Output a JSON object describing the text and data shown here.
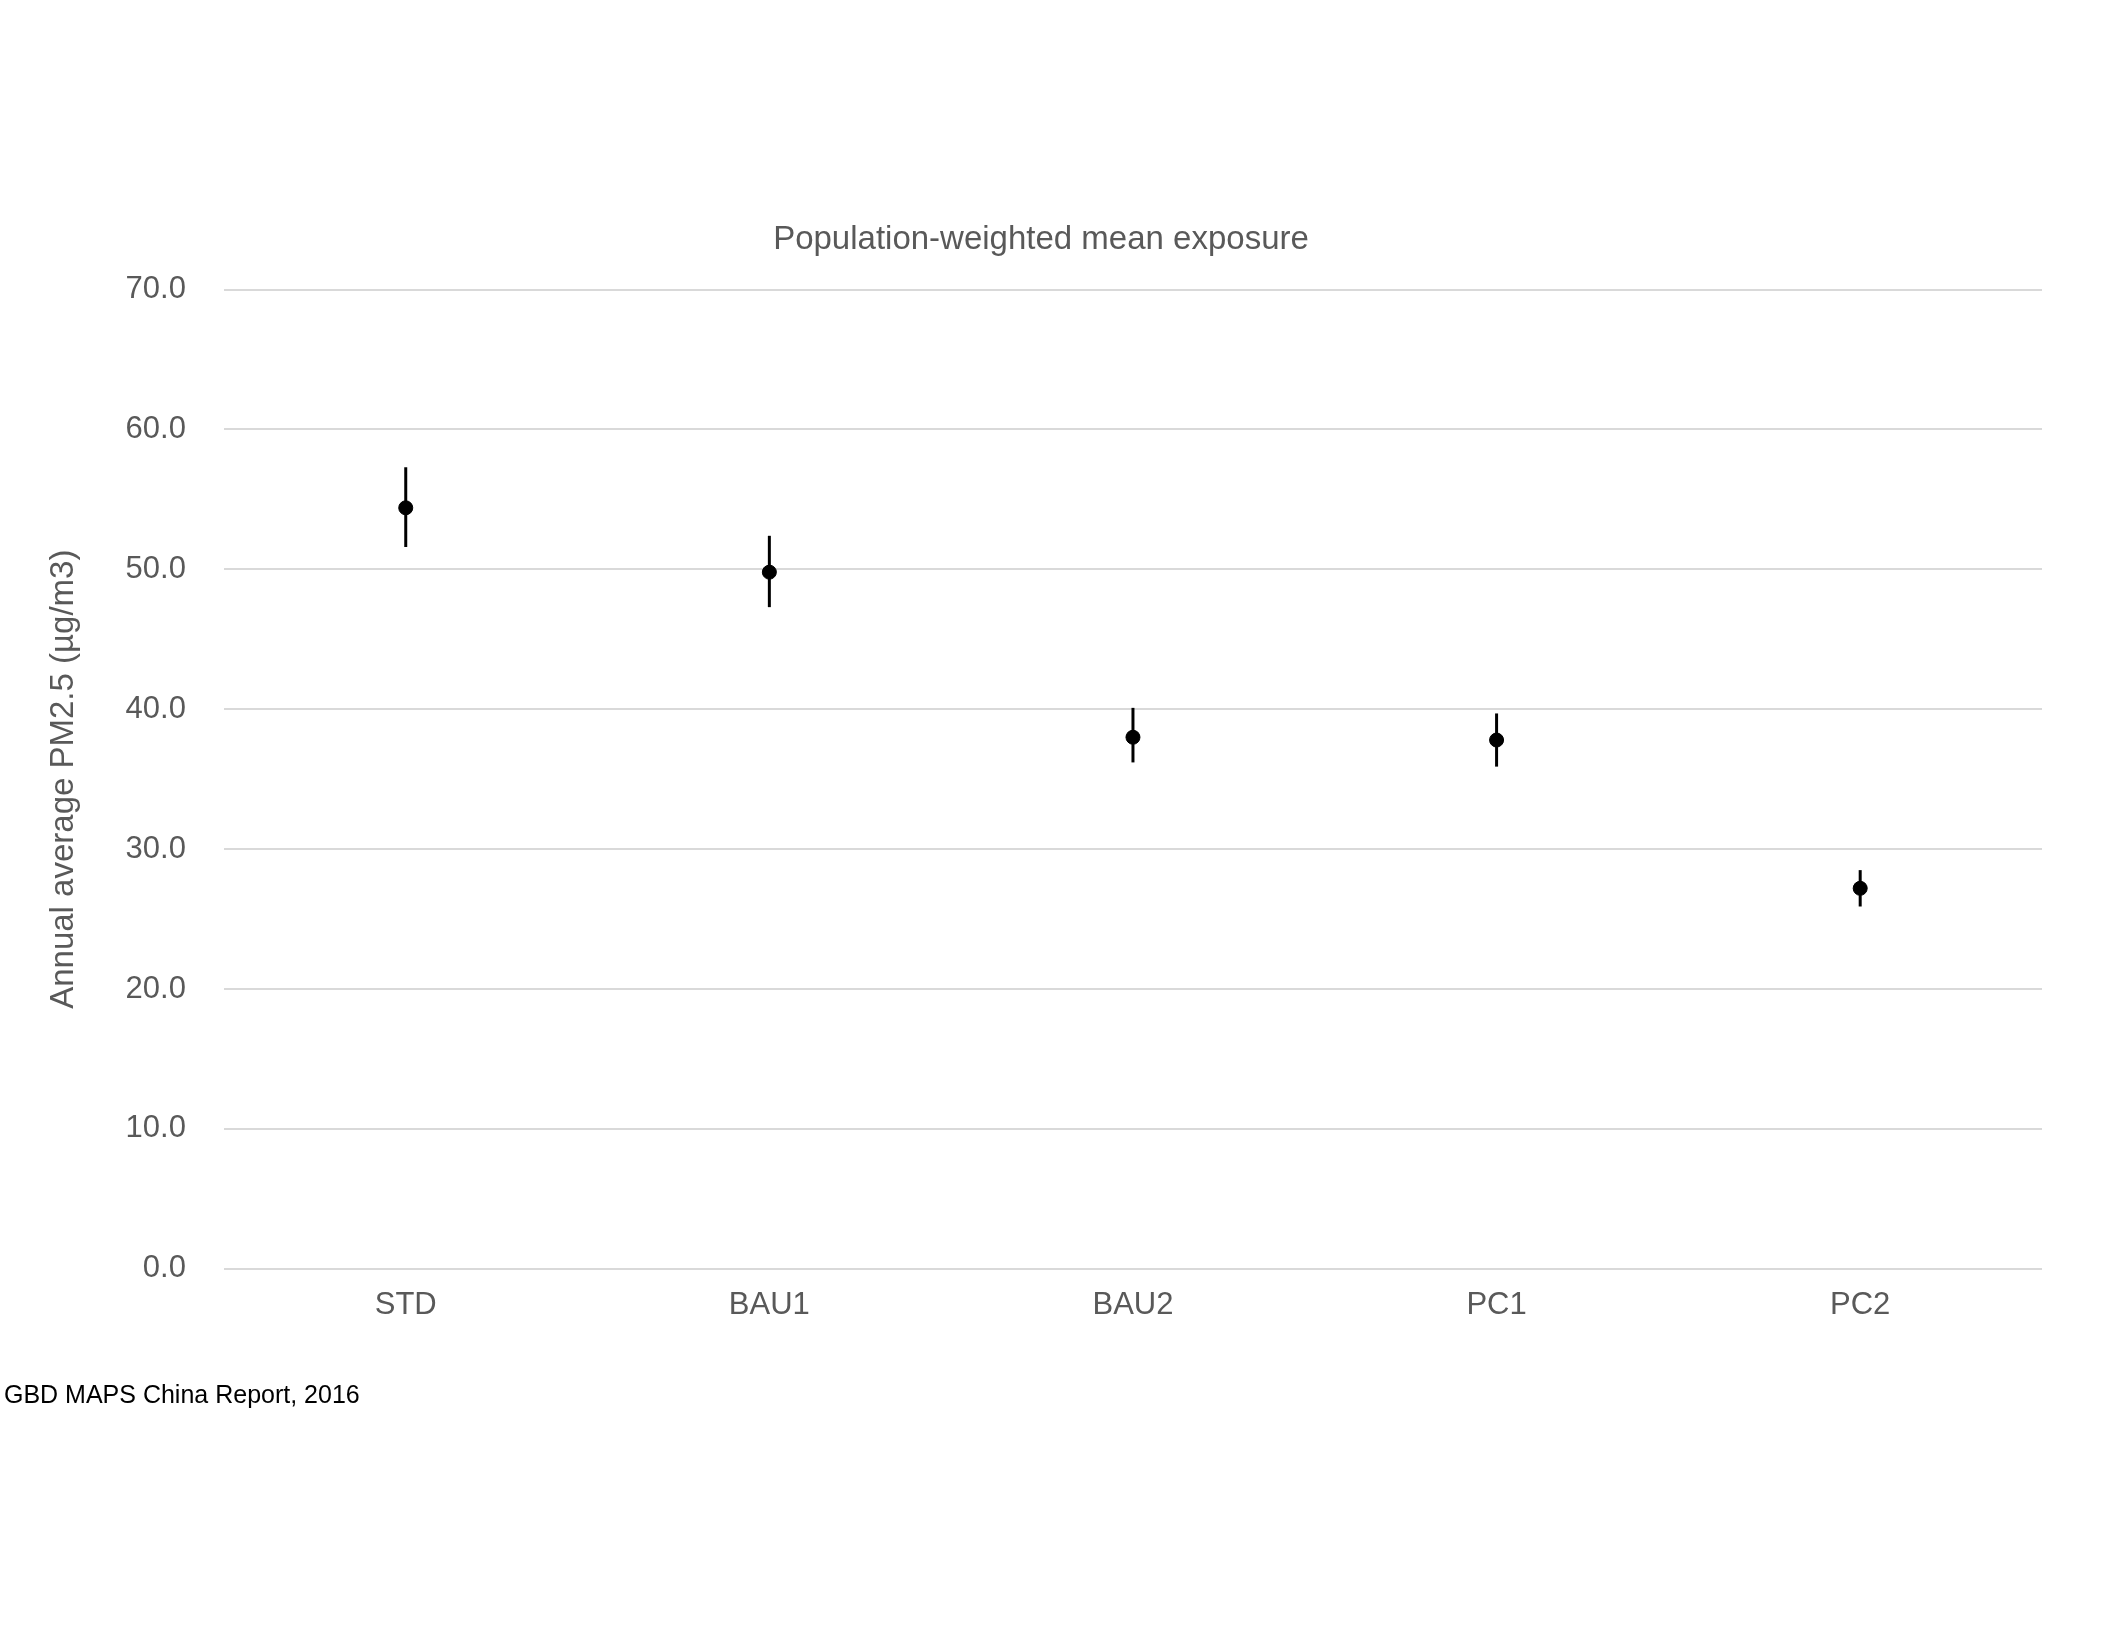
{
  "chart_data": {
    "type": "scatter",
    "title": "Population-weighted mean exposure",
    "ylabel": "Annual average PM2.5 (µg/m3)",
    "categories": [
      "STD",
      "BAU1",
      "BAU2",
      "PC1",
      "PC2"
    ],
    "values": [
      54.4,
      49.8,
      38.0,
      37.8,
      27.2
    ],
    "errors": [
      [
        51.6,
        57.3
      ],
      [
        47.3,
        52.4
      ],
      [
        36.2,
        40.1
      ],
      [
        35.9,
        39.7
      ],
      [
        25.9,
        28.5
      ]
    ],
    "color": "#000000",
    "marker": "circle",
    "grid": "y",
    "legend": false,
    "ylim": [
      0,
      70
    ],
    "yticks": [
      {
        "value": 0,
        "label": "0.0"
      },
      {
        "value": 10,
        "label": "10.0"
      },
      {
        "value": 20,
        "label": "20.0"
      },
      {
        "value": 30,
        "label": "30.0"
      },
      {
        "value": 40,
        "label": "40.0"
      },
      {
        "value": 50,
        "label": "50.0"
      },
      {
        "value": 60,
        "label": "60.0"
      },
      {
        "value": 70,
        "label": "70.0"
      }
    ],
    "annotations": [
      "GBD MAPS China Report, 2016"
    ]
  }
}
